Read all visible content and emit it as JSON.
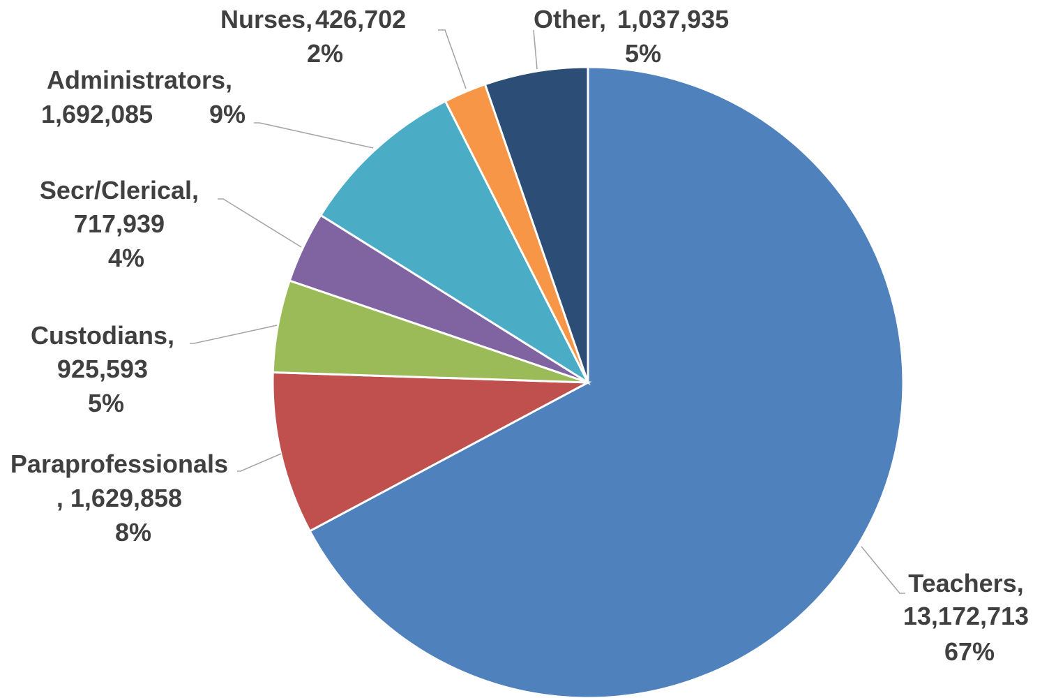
{
  "chart_data": {
    "type": "pie",
    "title": "",
    "start_angle_deg": 0,
    "direction": "clockwise",
    "slices": [
      {
        "category": "Teachers,",
        "value": 13172713,
        "value_label": "13,172,713",
        "percent_label": "67%",
        "color": "#4f81bd"
      },
      {
        "category": "Paraprofessionals",
        "value": 1629858,
        "value_label": ", 1,629,858",
        "percent_label": "8%",
        "color": "#c0504d"
      },
      {
        "category": "Custodians,",
        "value": 925593,
        "value_label": "925,593",
        "percent_label": "5%",
        "color": "#9bbb59"
      },
      {
        "category": "Secr/Clerical,",
        "value": 717939,
        "value_label": "717,939",
        "percent_label": "4%",
        "color": "#8064a2"
      },
      {
        "category": "Administrators,",
        "value": 1692085,
        "value_label": "1,692,085",
        "percent_label": "9%",
        "color": "#4bacc6"
      },
      {
        "category": "Nurses,",
        "value": 426702,
        "value_label": "426,702",
        "percent_label": "2%",
        "color": "#f79646"
      },
      {
        "category": "Other,",
        "value": 1037935,
        "value_label": "1,037,935",
        "percent_label": "5%",
        "color": "#2c4d75"
      }
    ]
  }
}
